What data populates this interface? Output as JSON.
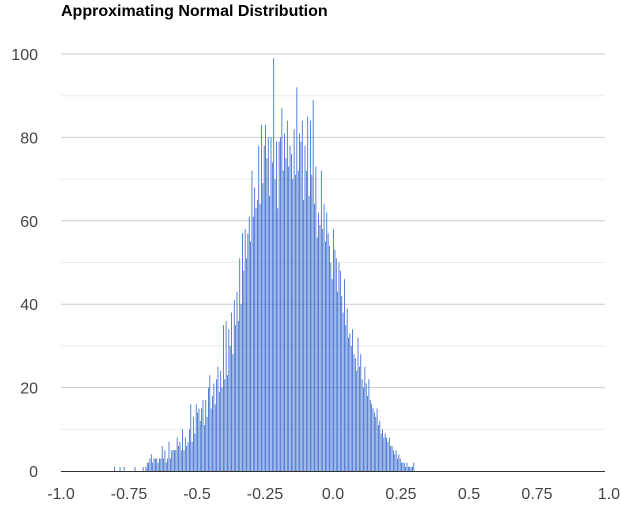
{
  "chart_data": {
    "type": "bar",
    "title": "Approximating Normal Distribution",
    "xlabel": "",
    "ylabel": "",
    "xlim": [
      -1.0,
      1.0
    ],
    "ylim": [
      0,
      100
    ],
    "x_ticks": [
      "-1.0",
      "-0.75",
      "-0.5",
      "-0.25",
      "0.0",
      "0.25",
      "0.5",
      "0.75",
      "1.0"
    ],
    "y_ticks": [
      "0",
      "20",
      "40",
      "60",
      "80",
      "100"
    ],
    "grid": true,
    "legend": "none",
    "bin_width": 0.005,
    "bar_color": "#3366cc",
    "bins": [
      [
        -0.805,
        1
      ],
      [
        -0.785,
        1
      ],
      [
        -0.77,
        1
      ],
      [
        -0.73,
        1
      ],
      [
        -0.7,
        1
      ],
      [
        -0.69,
        1
      ],
      [
        -0.685,
        2
      ],
      [
        -0.68,
        2
      ],
      [
        -0.675,
        3
      ],
      [
        -0.67,
        4
      ],
      [
        -0.665,
        2
      ],
      [
        -0.66,
        3
      ],
      [
        -0.655,
        3
      ],
      [
        -0.65,
        3
      ],
      [
        -0.645,
        2
      ],
      [
        -0.64,
        3
      ],
      [
        -0.635,
        3
      ],
      [
        -0.63,
        6
      ],
      [
        -0.625,
        3
      ],
      [
        -0.62,
        5
      ],
      [
        -0.615,
        2
      ],
      [
        -0.61,
        3
      ],
      [
        -0.605,
        7
      ],
      [
        -0.6,
        3
      ],
      [
        -0.595,
        5
      ],
      [
        -0.59,
        5
      ],
      [
        -0.585,
        5
      ],
      [
        -0.58,
        5
      ],
      [
        -0.575,
        8
      ],
      [
        -0.57,
        6
      ],
      [
        -0.565,
        7
      ],
      [
        -0.56,
        5
      ],
      [
        -0.555,
        10
      ],
      [
        -0.55,
        5
      ],
      [
        -0.545,
        8
      ],
      [
        -0.54,
        6
      ],
      [
        -0.535,
        7
      ],
      [
        -0.53,
        10
      ],
      [
        -0.525,
        16
      ],
      [
        -0.52,
        7
      ],
      [
        -0.515,
        13
      ],
      [
        -0.51,
        9
      ],
      [
        -0.505,
        16
      ],
      [
        -0.5,
        14
      ],
      [
        -0.495,
        15
      ],
      [
        -0.49,
        12
      ],
      [
        -0.485,
        15
      ],
      [
        -0.48,
        17
      ],
      [
        -0.475,
        11
      ],
      [
        -0.47,
        17
      ],
      [
        -0.465,
        13
      ],
      [
        -0.46,
        20
      ],
      [
        -0.455,
        23
      ],
      [
        -0.45,
        15
      ],
      [
        -0.445,
        18
      ],
      [
        -0.44,
        21
      ],
      [
        -0.435,
        16
      ],
      [
        -0.43,
        22
      ],
      [
        -0.425,
        25
      ],
      [
        -0.42,
        19
      ],
      [
        -0.415,
        24
      ],
      [
        -0.41,
        20
      ],
      [
        -0.405,
        35
      ],
      [
        -0.4,
        22
      ],
      [
        -0.395,
        36
      ],
      [
        -0.39,
        23
      ],
      [
        -0.385,
        34
      ],
      [
        -0.38,
        30
      ],
      [
        -0.375,
        38
      ],
      [
        -0.37,
        28
      ],
      [
        -0.365,
        41
      ],
      [
        -0.36,
        35
      ],
      [
        -0.355,
        43
      ],
      [
        -0.35,
        36
      ],
      [
        -0.345,
        51
      ],
      [
        -0.34,
        40
      ],
      [
        -0.335,
        57
      ],
      [
        -0.33,
        48
      ],
      [
        -0.325,
        58
      ],
      [
        -0.32,
        51
      ],
      [
        -0.315,
        57
      ],
      [
        -0.31,
        61
      ],
      [
        -0.305,
        55
      ],
      [
        -0.3,
        72
      ],
      [
        -0.295,
        61
      ],
      [
        -0.29,
        68
      ],
      [
        -0.285,
        63
      ],
      [
        -0.28,
        65
      ],
      [
        -0.275,
        78
      ],
      [
        -0.27,
        64
      ],
      [
        -0.265,
        83
      ],
      [
        -0.26,
        69
      ],
      [
        -0.255,
        78
      ],
      [
        -0.25,
        83
      ],
      [
        -0.245,
        75
      ],
      [
        -0.24,
        80
      ],
      [
        -0.235,
        66
      ],
      [
        -0.23,
        80
      ],
      [
        -0.225,
        74
      ],
      [
        -0.22,
        99
      ],
      [
        -0.215,
        70
      ],
      [
        -0.21,
        79
      ],
      [
        -0.205,
        63
      ],
      [
        -0.2,
        79
      ],
      [
        -0.195,
        80
      ],
      [
        -0.19,
        87
      ],
      [
        -0.185,
        72
      ],
      [
        -0.18,
        81
      ],
      [
        -0.175,
        75
      ],
      [
        -0.17,
        84
      ],
      [
        -0.165,
        73
      ],
      [
        -0.16,
        78
      ],
      [
        -0.155,
        76
      ],
      [
        -0.15,
        70
      ],
      [
        -0.145,
        82
      ],
      [
        -0.14,
        71
      ],
      [
        -0.135,
        92
      ],
      [
        -0.13,
        72
      ],
      [
        -0.125,
        81
      ],
      [
        -0.12,
        79
      ],
      [
        -0.115,
        84
      ],
      [
        -0.11,
        65
      ],
      [
        -0.105,
        78
      ],
      [
        -0.1,
        72
      ],
      [
        -0.095,
        85
      ],
      [
        -0.09,
        66
      ],
      [
        -0.085,
        84
      ],
      [
        -0.08,
        71
      ],
      [
        -0.075,
        89
      ],
      [
        -0.07,
        64
      ],
      [
        -0.065,
        73
      ],
      [
        -0.06,
        56
      ],
      [
        -0.055,
        62
      ],
      [
        -0.05,
        59
      ],
      [
        -0.045,
        72
      ],
      [
        -0.04,
        58
      ],
      [
        -0.035,
        64
      ],
      [
        -0.03,
        55
      ],
      [
        -0.025,
        62
      ],
      [
        -0.02,
        57
      ],
      [
        -0.015,
        54
      ],
      [
        -0.01,
        50
      ],
      [
        -0.005,
        46
      ],
      [
        0.0,
        58
      ],
      [
        0.005,
        53
      ],
      [
        0.01,
        51
      ],
      [
        0.015,
        43
      ],
      [
        0.02,
        50
      ],
      [
        0.025,
        48
      ],
      [
        0.03,
        42
      ],
      [
        0.035,
        38
      ],
      [
        0.04,
        46
      ],
      [
        0.045,
        35
      ],
      [
        0.05,
        39
      ],
      [
        0.055,
        32
      ],
      [
        0.06,
        33
      ],
      [
        0.065,
        30
      ],
      [
        0.07,
        34
      ],
      [
        0.075,
        28
      ],
      [
        0.08,
        27
      ],
      [
        0.085,
        24
      ],
      [
        0.09,
        32
      ],
      [
        0.095,
        25
      ],
      [
        0.1,
        28
      ],
      [
        0.105,
        22
      ],
      [
        0.11,
        20
      ],
      [
        0.115,
        25
      ],
      [
        0.12,
        21
      ],
      [
        0.125,
        18
      ],
      [
        0.13,
        22
      ],
      [
        0.135,
        17
      ],
      [
        0.14,
        16
      ],
      [
        0.145,
        15
      ],
      [
        0.15,
        14
      ],
      [
        0.155,
        13
      ],
      [
        0.16,
        15
      ],
      [
        0.165,
        11
      ],
      [
        0.17,
        12
      ],
      [
        0.175,
        9
      ],
      [
        0.18,
        10
      ],
      [
        0.185,
        8
      ],
      [
        0.19,
        9
      ],
      [
        0.195,
        8
      ],
      [
        0.2,
        7
      ],
      [
        0.205,
        8
      ],
      [
        0.21,
        6
      ],
      [
        0.215,
        6
      ],
      [
        0.22,
        5
      ],
      [
        0.225,
        4
      ],
      [
        0.23,
        5
      ],
      [
        0.235,
        3
      ],
      [
        0.24,
        4
      ],
      [
        0.245,
        3
      ],
      [
        0.25,
        2
      ],
      [
        0.255,
        2
      ],
      [
        0.26,
        2
      ],
      [
        0.265,
        1
      ],
      [
        0.27,
        2
      ],
      [
        0.275,
        1
      ],
      [
        0.28,
        1
      ],
      [
        0.285,
        1
      ],
      [
        0.29,
        1
      ],
      [
        0.295,
        2
      ]
    ]
  }
}
